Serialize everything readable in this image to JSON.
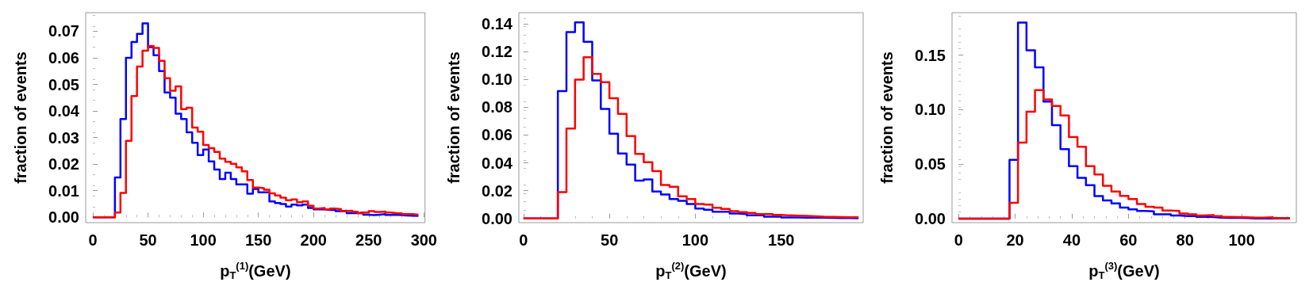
{
  "chart_data": [
    {
      "type": "histogram",
      "xlabel": "p$_{T}$$^{(1)}$(GeV)",
      "ylabel": "fraction of events",
      "bins": [
        0,
        20,
        25,
        30,
        35,
        40,
        45,
        50,
        55,
        60,
        65,
        70,
        75,
        80,
        85,
        90,
        95,
        100,
        105,
        110,
        115,
        120,
        125,
        130,
        135,
        140,
        145,
        150,
        155,
        160,
        165,
        170,
        175,
        180,
        185,
        190,
        195,
        200,
        205,
        210,
        215,
        220,
        225,
        230,
        235,
        240,
        245,
        250,
        255,
        260,
        265,
        270,
        275,
        280,
        285,
        290,
        295
      ],
      "series": [
        {
          "color": "#0000ff",
          "values": [
            0,
            0.015,
            0.037,
            0.06,
            0.066,
            0.069,
            0.073,
            0.064,
            0.061,
            0.055,
            0.047,
            0.045,
            0.039,
            0.037,
            0.032,
            0.028,
            0.0234,
            0.0255,
            0.021,
            0.018,
            0.0144,
            0.0168,
            0.0144,
            0.0124,
            0.0124,
            0.0089,
            0.0107,
            0.0094,
            0.0094,
            0.006,
            0.0054,
            0.005,
            0.004,
            0.0048,
            0.0045,
            0.0048,
            0.0035,
            0.003,
            0.003,
            0.0028,
            0.0028,
            0.0023,
            0.0025,
            0.0016,
            0.0016,
            0.0018,
            0.001,
            0.0008,
            0.001,
            0.0012,
            0.0009,
            0.001,
            0.0008,
            0.0007,
            0.0006,
            0.0005
          ]
        },
        {
          "color": "#ff0000",
          "values": [
            0,
            0.0018,
            0.0092,
            0.0288,
            0.0456,
            0.0567,
            0.0627,
            0.0645,
            0.0637,
            0.0589,
            0.0523,
            0.0476,
            0.0493,
            0.0407,
            0.0412,
            0.0338,
            0.0322,
            0.0272,
            0.026,
            0.0246,
            0.0221,
            0.0209,
            0.0201,
            0.0188,
            0.0173,
            0.014,
            0.0112,
            0.011,
            0.0104,
            0.009,
            0.0082,
            0.0074,
            0.0064,
            0.0067,
            0.0057,
            0.006,
            0.0043,
            0.0033,
            0.0035,
            0.003,
            0.0033,
            0.0031,
            0.0023,
            0.0025,
            0.0021,
            0.0015,
            0.0018,
            0.0023,
            0.002,
            0.0022,
            0.0018,
            0.0016,
            0.0015,
            0.0012,
            0.0012,
            0.001
          ]
        }
      ],
      "xlim": [
        -6.5,
        301
      ],
      "ylim": [
        -0.002,
        0.077
      ],
      "xticks": [
        0,
        50,
        100,
        150,
        200,
        250,
        300
      ],
      "yticks": [
        {
          "value": 0,
          "label": "0.00"
        },
        {
          "value": 0.01,
          "label": "0.01"
        },
        {
          "value": 0.02,
          "label": "0.02"
        },
        {
          "value": 0.03,
          "label": "0.03"
        },
        {
          "value": 0.04,
          "label": "0.04"
        },
        {
          "value": 0.05,
          "label": "0.05"
        },
        {
          "value": 0.06,
          "label": "0.06"
        },
        {
          "value": 0.07,
          "label": "0.07"
        }
      ]
    },
    {
      "type": "histogram",
      "xlabel": "p$_{T}$$^{(2)}$(GeV)",
      "ylabel": "fraction of events",
      "bins": [
        0,
        20,
        25,
        30,
        35,
        40,
        45,
        50,
        55,
        60,
        65,
        70,
        75,
        80,
        85,
        90,
        95,
        100,
        105,
        110,
        115,
        120,
        125,
        130,
        135,
        140,
        145,
        150,
        155,
        160,
        165,
        170,
        175,
        180,
        185,
        190,
        195
      ],
      "series": [
        {
          "color": "#0000ff",
          "values": [
            0,
            0.0916,
            0.134,
            0.141,
            0.127,
            0.0993,
            0.0788,
            0.061,
            0.0467,
            0.0387,
            0.0272,
            0.0281,
            0.0194,
            0.0172,
            0.014,
            0.0126,
            0.0104,
            0.0071,
            0.0062,
            0.0049,
            0.0049,
            0.0035,
            0.0031,
            0.0022,
            0.0022,
            0.0013,
            0.0013,
            0.0007,
            0.0007,
            0.0006,
            0.0005,
            0.0005,
            0.0004,
            0.0003,
            0.0003,
            0.0002
          ]
        },
        {
          "color": "#ff0000",
          "values": [
            0,
            0.019,
            0.0646,
            0.0998,
            0.116,
            0.104,
            0.098,
            0.0865,
            0.0752,
            0.0593,
            0.0465,
            0.0405,
            0.034,
            0.0241,
            0.0228,
            0.0159,
            0.014,
            0.0104,
            0.0099,
            0.0077,
            0.0068,
            0.0053,
            0.0046,
            0.004,
            0.0031,
            0.0031,
            0.0026,
            0.0022,
            0.002,
            0.0018,
            0.0016,
            0.0013,
            0.0012,
            0.001,
            0.0009,
            0.0008
          ]
        }
      ],
      "xlim": [
        -2.7,
        197.7
      ],
      "ylim": [
        -0.003,
        0.148
      ],
      "xticks": [
        0,
        50,
        100,
        150
      ],
      "yticks": [
        {
          "value": 0,
          "label": "0.00"
        },
        {
          "value": 0.02,
          "label": "0.02"
        },
        {
          "value": 0.04,
          "label": "0.04"
        },
        {
          "value": 0.06,
          "label": "0.06"
        },
        {
          "value": 0.08,
          "label": "0.08"
        },
        {
          "value": 0.1,
          "label": "0.10"
        },
        {
          "value": 0.12,
          "label": "0.12"
        },
        {
          "value": 0.14,
          "label": "0.14"
        }
      ]
    },
    {
      "type": "histogram",
      "xlabel": "p$_{T}$$^{(3)}$(GeV)",
      "ylabel": "fraction of events",
      "bins": [
        0,
        18,
        21,
        24,
        27,
        30,
        33,
        36,
        39,
        42,
        45,
        48,
        51,
        54,
        57,
        60,
        63,
        66,
        69,
        72,
        75,
        78,
        81,
        84,
        87,
        90,
        93,
        96,
        99,
        102,
        105,
        108,
        111,
        114,
        117
      ],
      "series": [
        {
          "color": "#0000ff",
          "values": [
            0,
            0.054,
            0.18,
            0.1544,
            0.1388,
            0.1074,
            0.0858,
            0.0637,
            0.0481,
            0.0374,
            0.0307,
            0.0207,
            0.0167,
            0.014,
            0.0102,
            0.0084,
            0.007,
            0.0067,
            0.004,
            0.004,
            0.0028,
            0.0023,
            0.0023,
            0.0016,
            0.0014,
            0.0009,
            0.0007,
            0.0007,
            0.0005,
            0.0002,
            0.0002,
            0.0002,
            0.0002,
            0.0002
          ]
        },
        {
          "color": "#ff0000",
          "values": [
            0,
            0.0144,
            0.0698,
            0.0981,
            0.1179,
            0.1093,
            0.1033,
            0.0947,
            0.0749,
            0.066,
            0.0481,
            0.0405,
            0.0302,
            0.0249,
            0.0209,
            0.0179,
            0.0133,
            0.0109,
            0.0102,
            0.0074,
            0.007,
            0.0047,
            0.004,
            0.0028,
            0.0033,
            0.0023,
            0.0016,
            0.0014,
            0.0012,
            0.0009,
            0.0009,
            0.0012,
            0.0005,
            0.0005
          ]
        }
      ],
      "xlim": [
        -2.3,
        119.3
      ],
      "ylim": [
        -0.0037,
        0.189
      ],
      "xticks": [
        0,
        20,
        40,
        60,
        80,
        100
      ],
      "yticks": [
        {
          "value": 0,
          "label": "0.00"
        },
        {
          "value": 0.05,
          "label": "0.05"
        },
        {
          "value": 0.1,
          "label": "0.10"
        },
        {
          "value": 0.15,
          "label": "0.15"
        }
      ]
    }
  ]
}
